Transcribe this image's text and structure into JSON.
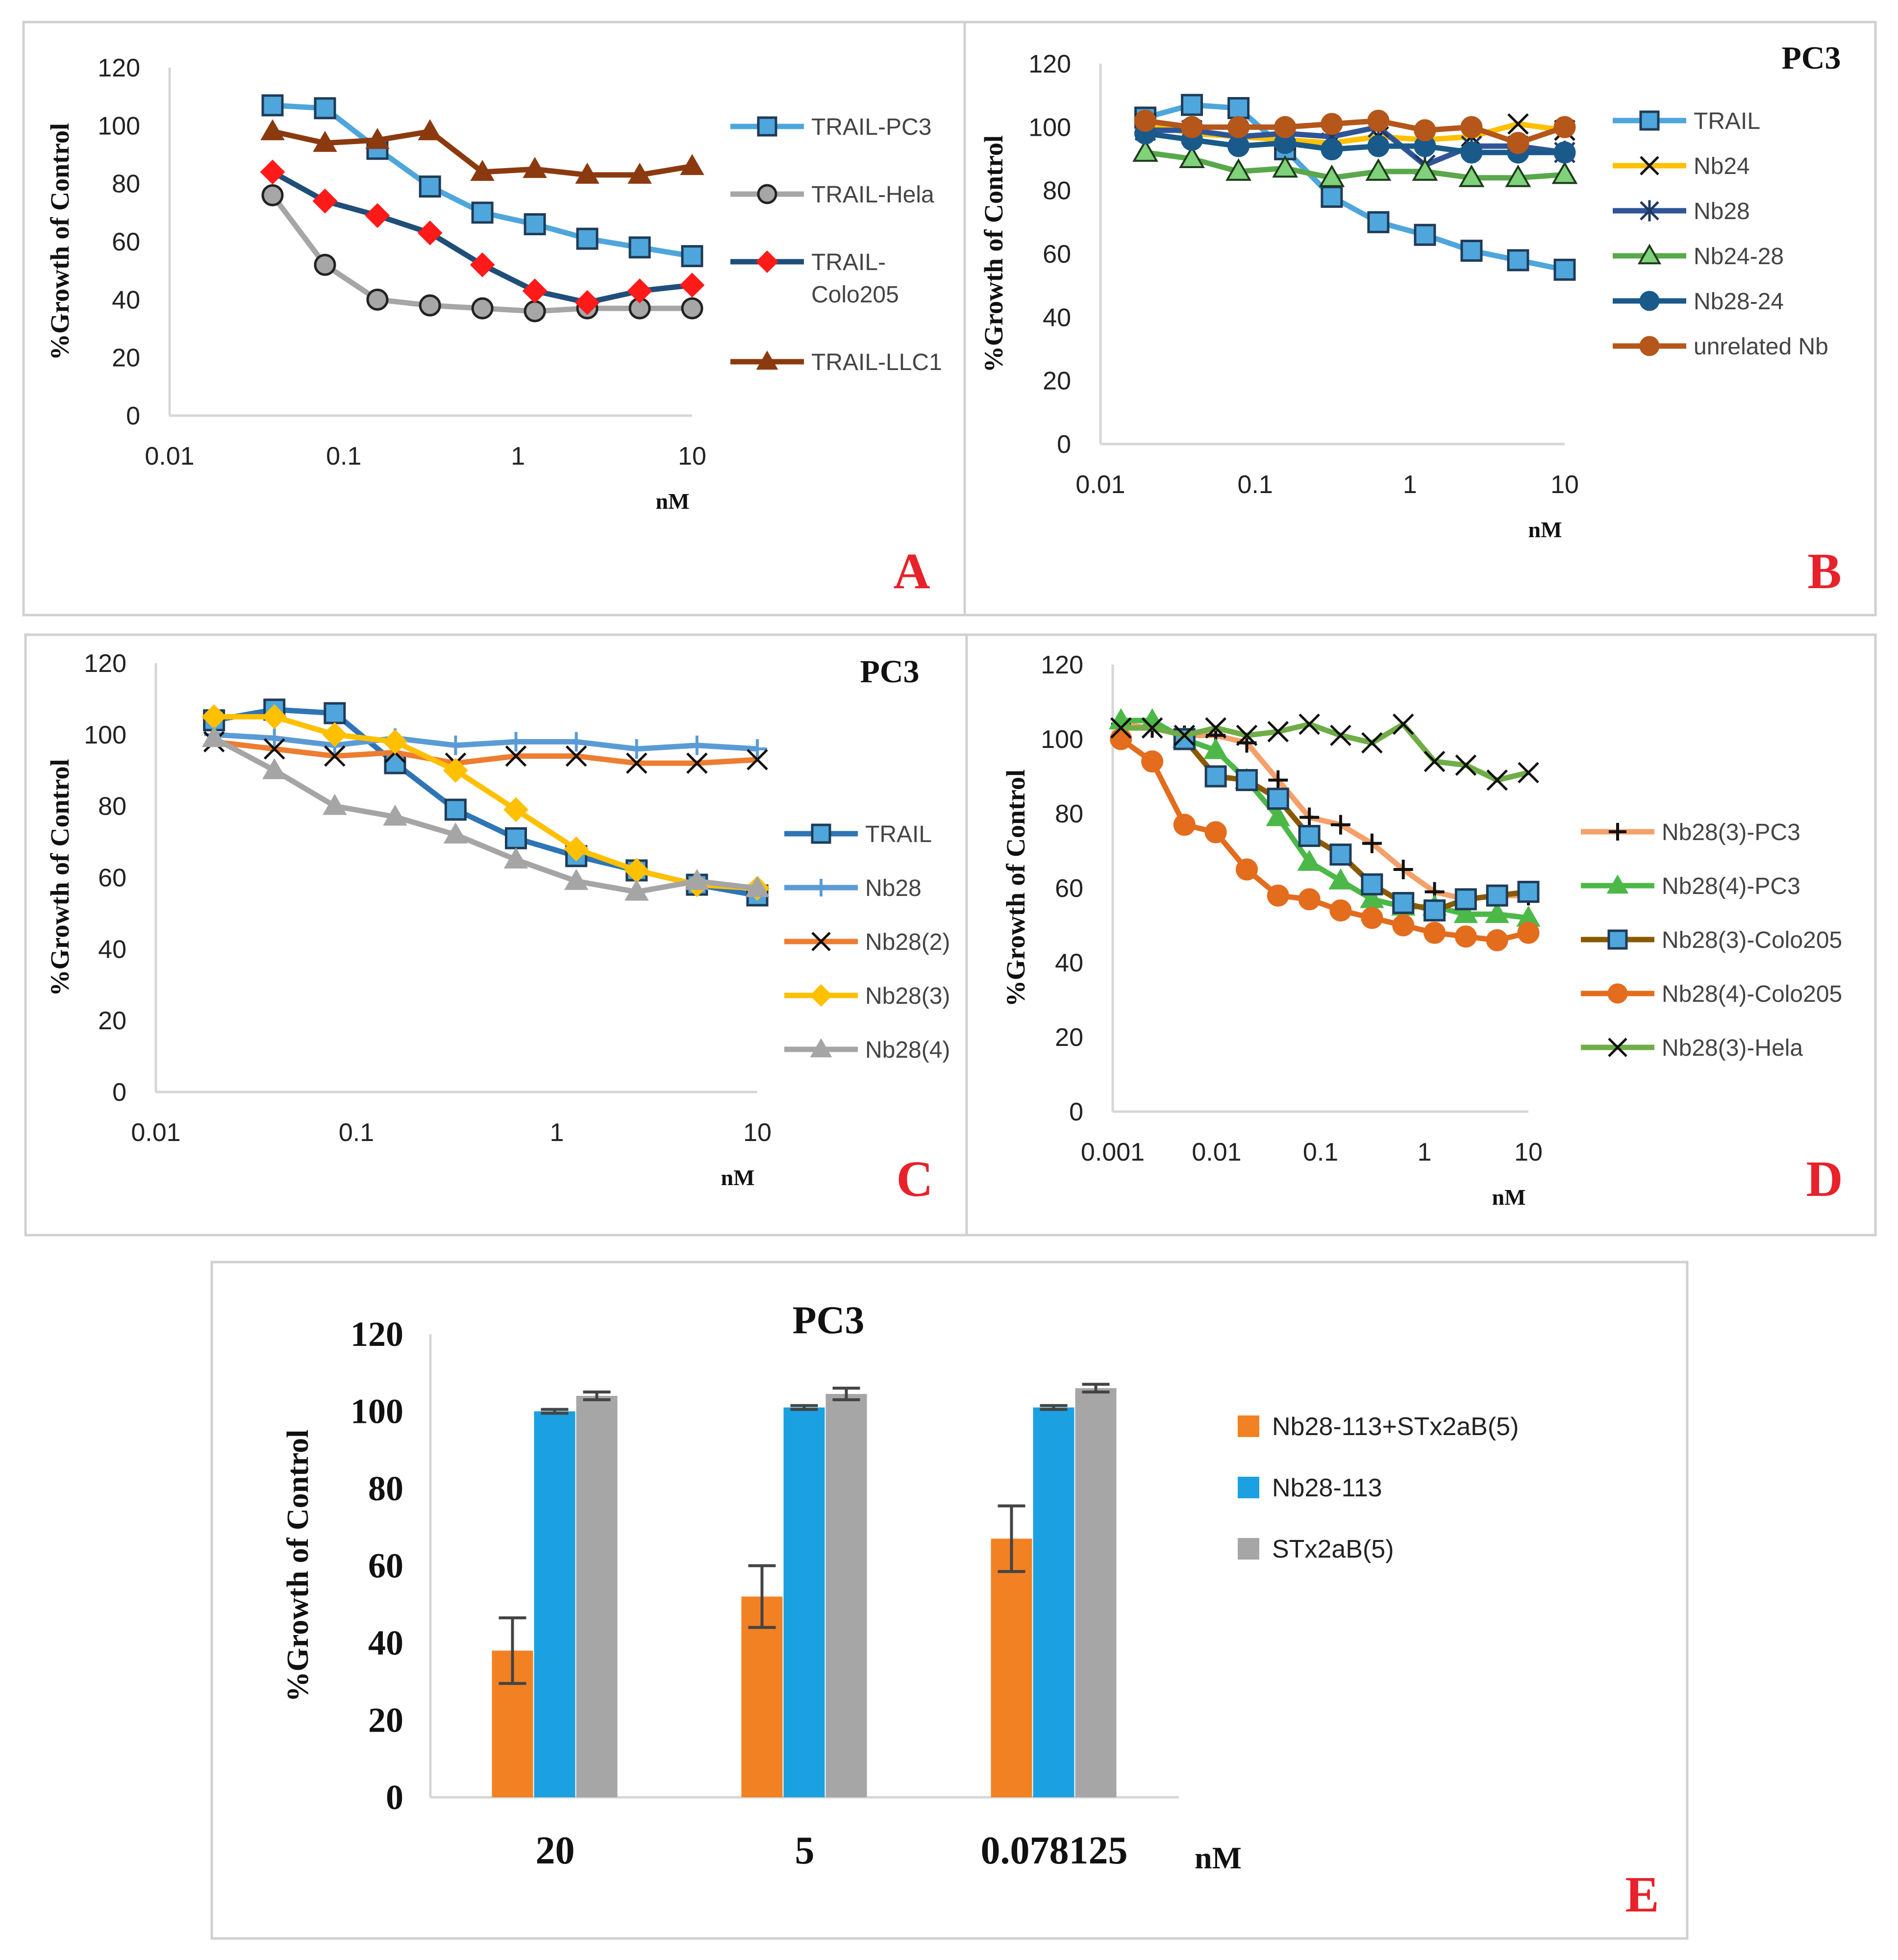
{
  "panel_letters": [
    "A",
    "B",
    "C",
    "D",
    "E"
  ],
  "chart_data": [
    {
      "panel": "A",
      "type": "line",
      "title": "",
      "ylabel": "%Growth of Control",
      "xlabel": "nM",
      "xscale": "log",
      "xlim": [
        0.01,
        10
      ],
      "ylim": [
        0,
        120
      ],
      "yticks": [
        "0",
        "20",
        "40",
        "60",
        "80",
        "100",
        "120"
      ],
      "xticks": [
        "0.01",
        "0.1",
        "1",
        "10"
      ],
      "x": [
        0.039,
        0.078,
        0.156,
        0.3125,
        0.625,
        1.25,
        2.5,
        5,
        10
      ],
      "legend_position": "right",
      "series": [
        {
          "name": "TRAIL-PC3",
          "legend_lines": [
            "TRAIL-PC3"
          ],
          "color": "#4ea6dc",
          "marker": "square",
          "values": [
            107,
            106,
            92,
            79,
            70,
            66,
            61,
            58,
            55
          ]
        },
        {
          "name": "TRAIL-Hela",
          "legend_lines": [
            "TRAIL-Hela"
          ],
          "color": "#a6a6a6",
          "marker": "circle",
          "values": [
            76,
            52,
            40,
            38,
            37,
            36,
            37,
            37,
            37
          ]
        },
        {
          "name": "TRAIL-Colo205",
          "legend_lines": [
            "TRAIL-",
            "Colo205"
          ],
          "color": "#1f4e79",
          "marker": "diamond",
          "values": [
            84,
            74,
            69,
            63,
            52,
            43,
            39,
            43,
            45
          ]
        },
        {
          "name": "TRAIL-LLC1",
          "legend_lines": [
            "TRAIL-LLC1"
          ],
          "color": "#8b3a0f",
          "marker": "triangle",
          "values": [
            98,
            94,
            95,
            98,
            84,
            85,
            83,
            83,
            86
          ]
        }
      ]
    },
    {
      "panel": "B",
      "type": "line",
      "title": "PC3",
      "ylabel": "%Growth of Control",
      "xlabel": "nM",
      "xscale": "log",
      "xlim": [
        0.01,
        10
      ],
      "ylim": [
        0,
        120
      ],
      "yticks": [
        "0",
        "20",
        "40",
        "60",
        "80",
        "100",
        "120"
      ],
      "xticks": [
        "0.01",
        "0.1",
        "1",
        "10"
      ],
      "x": [
        0.0195,
        0.039,
        0.078,
        0.156,
        0.3125,
        0.625,
        1.25,
        2.5,
        5,
        10
      ],
      "legend_position": "right",
      "series": [
        {
          "name": "TRAIL",
          "legend_lines": [
            "TRAIL"
          ],
          "color": "#4ea6dc",
          "marker": "square",
          "values": [
            103,
            107,
            106,
            93,
            78,
            70,
            66,
            61,
            58,
            55
          ]
        },
        {
          "name": "Nb24",
          "legend_lines": [
            "Nb24"
          ],
          "color": "#ffc000",
          "marker": "x",
          "values": [
            101,
            98,
            97,
            96,
            95,
            97,
            96,
            97,
            101,
            99
          ]
        },
        {
          "name": "Nb28",
          "legend_lines": [
            "Nb28"
          ],
          "color": "#2f5597",
          "marker": "star",
          "values": [
            99,
            99,
            97,
            98,
            97,
            100,
            88,
            94,
            94,
            92
          ]
        },
        {
          "name": "Nb24-28",
          "legend_lines": [
            "Nb24-28"
          ],
          "color": "#59a84b",
          "marker": "triangle-open",
          "values": [
            92,
            90,
            86,
            87,
            84,
            86,
            86,
            84,
            84,
            85
          ]
        },
        {
          "name": "Nb28-24",
          "legend_lines": [
            "Nb28-24"
          ],
          "color": "#1a5a8a",
          "marker": "circle",
          "values": [
            98,
            96,
            94,
            95,
            93,
            94,
            94,
            92,
            92,
            92
          ]
        },
        {
          "name": "unrelated Nb",
          "legend_lines": [
            "unrelated Nb"
          ],
          "color": "#b5561a",
          "marker": "circle",
          "values": [
            102,
            100,
            100,
            100,
            101,
            102,
            99,
            100,
            95,
            100
          ]
        }
      ]
    },
    {
      "panel": "C",
      "type": "line",
      "title": "PC3",
      "ylabel": "%Growth of Control",
      "xlabel": "nM",
      "xscale": "log",
      "xlim": [
        0.01,
        10
      ],
      "ylim": [
        0,
        120
      ],
      "yticks": [
        "0",
        "20",
        "40",
        "60",
        "80",
        "100",
        "120"
      ],
      "xticks": [
        "0.01",
        "0.1",
        "1",
        "10"
      ],
      "x": [
        0.0195,
        0.039,
        0.078,
        0.156,
        0.3125,
        0.625,
        1.25,
        2.5,
        5,
        10
      ],
      "legend_position": "right",
      "series": [
        {
          "name": "TRAIL",
          "legend_lines": [
            "TRAIL"
          ],
          "color": "#2e75b6",
          "marker": "square",
          "values": [
            104,
            107,
            106,
            92,
            79,
            71,
            66,
            62,
            58,
            55
          ]
        },
        {
          "name": "Nb28",
          "legend_lines": [
            "Nb28"
          ],
          "color": "#5b9bd5",
          "marker": "plus",
          "values": [
            100,
            99,
            97,
            99,
            97,
            98,
            98,
            96,
            97,
            96
          ]
        },
        {
          "name": "Nb28(2)",
          "legend_lines": [
            "Nb28(2)"
          ],
          "color": "#ed7d31",
          "marker": "x",
          "values": [
            98,
            96,
            94,
            95,
            92,
            94,
            94,
            92,
            92,
            93
          ]
        },
        {
          "name": "Nb28(3)",
          "legend_lines": [
            "Nb28(3)"
          ],
          "color": "#ffc000",
          "marker": "diamond",
          "values": [
            105,
            105,
            100,
            98,
            90,
            79,
            68,
            62,
            58,
            57
          ]
        },
        {
          "name": "Nb28(4)",
          "legend_lines": [
            "Nb28(4)"
          ],
          "color": "#a5a5a5",
          "marker": "triangle",
          "values": [
            99,
            90,
            80,
            77,
            72,
            65,
            59,
            56,
            59,
            57
          ]
        }
      ]
    },
    {
      "panel": "D",
      "type": "line",
      "title": "",
      "ylabel": "%Growth of Control",
      "xlabel": "nM",
      "xscale": "log",
      "xlim": [
        0.001,
        10
      ],
      "ylim": [
        0,
        120
      ],
      "yticks": [
        "0",
        "20",
        "40",
        "60",
        "80",
        "100",
        "120"
      ],
      "xticks": [
        "0.001",
        "0.01",
        "0.1",
        "1",
        "10"
      ],
      "x": [
        0.0012,
        0.0024,
        0.0049,
        0.0098,
        0.0195,
        0.039,
        0.078,
        0.156,
        0.3125,
        0.625,
        1.25,
        2.5,
        5,
        10
      ],
      "legend_position": "right",
      "series": [
        {
          "name": "Nb28(3)-PC3",
          "legend_lines": [
            "Nb28(3)-PC3"
          ],
          "color": "#f4a06a",
          "marker": "plus",
          "values": [
            104,
            103,
            101,
            101,
            99,
            89,
            79,
            77,
            72,
            65,
            59,
            57,
            58,
            58
          ]
        },
        {
          "name": "Nb28(4)-PC3",
          "legend_lines": [
            "Nb28(4)-PC3"
          ],
          "color": "#4cb848",
          "marker": "triangle",
          "values": [
            105,
            105,
            100,
            97,
            89,
            79,
            67,
            62,
            57,
            55,
            55,
            53,
            53,
            52
          ]
        },
        {
          "name": "Nb28(3)-Colo205",
          "legend_lines": [
            "Nb28(3)-Colo205"
          ],
          "color": "#8a5a00",
          "marker": "square",
          "values": [
            null,
            null,
            100,
            90,
            89,
            84,
            74,
            69,
            61,
            56,
            54,
            57,
            58,
            59
          ]
        },
        {
          "name": "Nb28(4)-Colo205",
          "legend_lines": [
            "Nb28(4)-Colo205"
          ],
          "color": "#e36c1d",
          "marker": "circle",
          "values": [
            100,
            94,
            77,
            75,
            65,
            58,
            57,
            54,
            52,
            50,
            48,
            47,
            46,
            48
          ]
        },
        {
          "name": "Nb28(3)-Hela",
          "legend_lines": [
            "Nb28(3)-Hela"
          ],
          "color": "#70ad47",
          "marker": "x",
          "values": [
            103,
            103,
            101,
            103,
            101,
            102,
            104,
            101,
            99,
            104,
            94,
            93,
            89,
            91
          ]
        }
      ]
    },
    {
      "panel": "E",
      "type": "bar",
      "title": "PC3",
      "ylabel": "%Growth of Control",
      "xlabel": "nM",
      "ylim": [
        0,
        120
      ],
      "yticks": [
        "0",
        "20",
        "40",
        "60",
        "80",
        "100",
        "120"
      ],
      "categories": [
        "20",
        "5",
        "0.078125"
      ],
      "legend_position": "right",
      "series": [
        {
          "name": "Nb28-113+STx2aB(5)",
          "color": "#f28123",
          "values": [
            38,
            52,
            67
          ],
          "errors": [
            8.5,
            8,
            8.5
          ]
        },
        {
          "name": "Nb28-113",
          "color": "#1ba1e2",
          "values": [
            100,
            101,
            101
          ],
          "errors": [
            0.5,
            0.5,
            0.5
          ]
        },
        {
          "name": "STx2aB(5)",
          "color": "#a6a6a6",
          "values": [
            104,
            104.5,
            106
          ],
          "errors": [
            1,
            1.5,
            1
          ]
        }
      ]
    }
  ]
}
